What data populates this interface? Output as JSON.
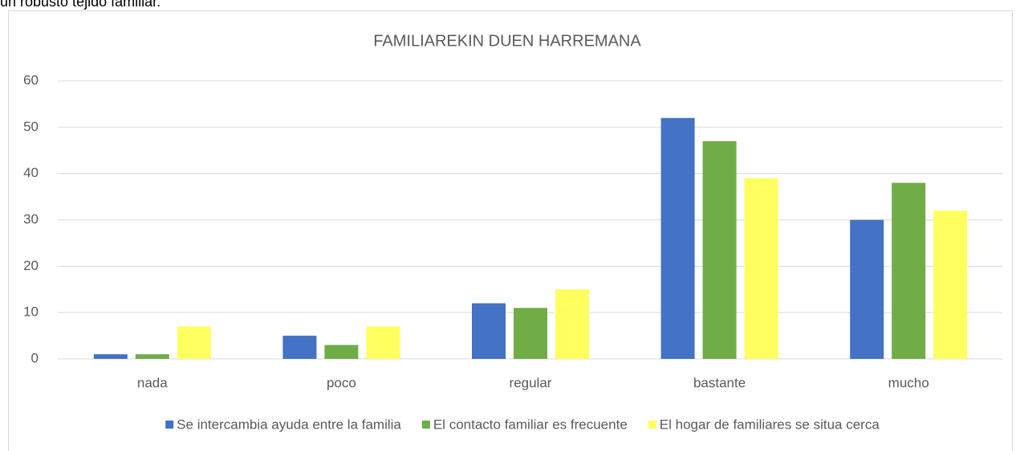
{
  "intro_text": "un robusto tejido familiar.",
  "chart_data": {
    "type": "bar",
    "title": "FAMILIAREKIN DUEN HARREMANA",
    "categories": [
      "nada",
      "poco",
      "regular",
      "bastante",
      "mucho"
    ],
    "series": [
      {
        "name": "Se intercambia ayuda entre la familia",
        "color": "#4472c4",
        "values": [
          1,
          5,
          12,
          52,
          30
        ]
      },
      {
        "name": "El contacto familiar es frecuente",
        "color": "#70ad47",
        "values": [
          1,
          3,
          11,
          47,
          38
        ]
      },
      {
        "name": "El hogar de familiares se situa cerca",
        "color": "#ffff5f",
        "values": [
          7,
          7,
          15,
          39,
          32
        ]
      }
    ],
    "ylim": [
      0,
      60
    ],
    "yticks": [
      0,
      10,
      20,
      30,
      40,
      50,
      60
    ],
    "grid": true,
    "legend": "bottom"
  }
}
